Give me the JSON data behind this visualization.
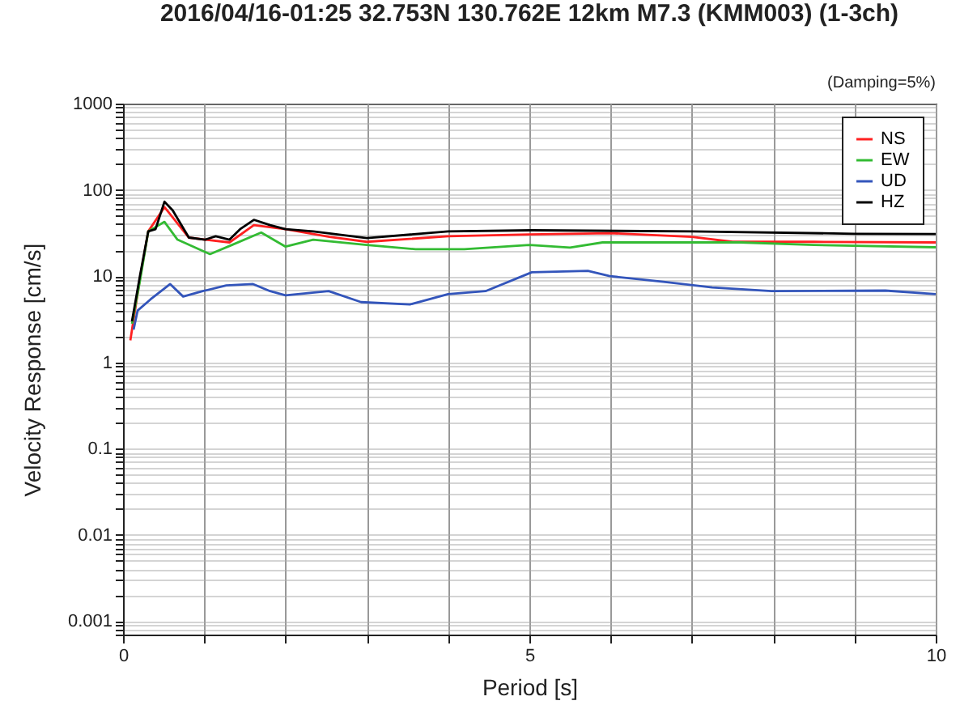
{
  "chart_data": {
    "type": "line",
    "title": "2016/04/16-01:25 32.753N 130.762E 12km M7.3 (KMM003) (1-3ch)",
    "annotations": [
      "(Damping=5%)"
    ],
    "xlabel": "Period [s]",
    "ylabel": "Velocity Response [cm/s]",
    "log": true,
    "grid": true,
    "legend": "top right",
    "line_style": "solid",
    "xlim": [
      0,
      10
    ],
    "ylim": [
      0.0007,
      1000
    ],
    "xticks": [
      0,
      {
        "value": 1,
        "label": null
      },
      {
        "value": 2,
        "label": null
      },
      {
        "value": 3,
        "label": null
      },
      {
        "value": 4,
        "label": null
      },
      5,
      {
        "value": 6,
        "label": null
      },
      {
        "value": 7,
        "label": null
      },
      {
        "value": 8,
        "label": null
      },
      {
        "value": 9,
        "label": null
      },
      10
    ],
    "yticks": [
      {
        "value": 0.0007,
        "label": null
      },
      {
        "value": 0.0008,
        "label": null
      },
      {
        "value": 0.0009,
        "label": null
      },
      0.001,
      {
        "value": 0.002,
        "label": null
      },
      {
        "value": 0.003,
        "label": null
      },
      {
        "value": 0.004,
        "label": null
      },
      {
        "value": 0.005,
        "label": null
      },
      {
        "value": 0.006,
        "label": null
      },
      {
        "value": 0.007,
        "label": null
      },
      {
        "value": 0.008,
        "label": null
      },
      {
        "value": 0.009,
        "label": null
      },
      0.01,
      {
        "value": 0.02,
        "label": null
      },
      {
        "value": 0.03,
        "label": null
      },
      {
        "value": 0.04,
        "label": null
      },
      {
        "value": 0.05,
        "label": null
      },
      {
        "value": 0.06,
        "label": null
      },
      {
        "value": 0.07,
        "label": null
      },
      {
        "value": 0.08,
        "label": null
      },
      {
        "value": 0.09,
        "label": null
      },
      0.1,
      {
        "value": 0.2,
        "label": null
      },
      {
        "value": 0.3,
        "label": null
      },
      {
        "value": 0.4,
        "label": null
      },
      {
        "value": 0.5,
        "label": null
      },
      {
        "value": 0.6,
        "label": null
      },
      {
        "value": 0.7,
        "label": null
      },
      {
        "value": 0.8,
        "label": null
      },
      {
        "value": 0.9,
        "label": null
      },
      1,
      {
        "value": 2,
        "label": null
      },
      {
        "value": 3,
        "label": null
      },
      {
        "value": 4,
        "label": null
      },
      {
        "value": 5,
        "label": null
      },
      {
        "value": 6,
        "label": null
      },
      {
        "value": 7,
        "label": null
      },
      {
        "value": 8,
        "label": null
      },
      {
        "value": 9,
        "label": null
      },
      10,
      {
        "value": 20,
        "label": null
      },
      {
        "value": 30,
        "label": null
      },
      {
        "value": 40,
        "label": null
      },
      {
        "value": 50,
        "label": null
      },
      {
        "value": 60,
        "label": null
      },
      {
        "value": 70,
        "label": null
      },
      {
        "value": 80,
        "label": null
      },
      {
        "value": 90,
        "label": null
      },
      100,
      {
        "value": 200,
        "label": null
      },
      {
        "value": 300,
        "label": null
      },
      {
        "value": 400,
        "label": null
      },
      {
        "value": 500,
        "label": null
      },
      {
        "value": 600,
        "label": null
      },
      {
        "value": 700,
        "label": null
      },
      {
        "value": 800,
        "label": null
      },
      {
        "value": 900,
        "label": null
      },
      1000
    ],
    "series": [
      {
        "name": "NS",
        "color": "#ff2020",
        "x": [
          0.09,
          0.21,
          0.31,
          0.51,
          0.81,
          1.01,
          1.31,
          1.61,
          2.0,
          2.54,
          3.0,
          4.0,
          5.0,
          6.0,
          7.0,
          7.5,
          8.5,
          10
        ],
        "values": [
          1.8,
          9.6,
          33,
          63,
          28,
          26.5,
          24.6,
          39,
          35,
          28.5,
          25,
          29,
          30.5,
          31.5,
          28.5,
          25,
          25,
          24.6
        ]
      },
      {
        "name": "EW",
        "color": "#33bb33",
        "x": [
          0.11,
          0.21,
          0.31,
          0.51,
          0.67,
          1.07,
          1.34,
          1.7,
          2.0,
          2.34,
          3.0,
          3.6,
          4.2,
          5.0,
          5.5,
          5.9,
          7.6,
          8.5,
          10
        ],
        "values": [
          2.8,
          9,
          33,
          42.6,
          26.5,
          18,
          23,
          32,
          22,
          26.5,
          23,
          20.5,
          20.5,
          23,
          21.4,
          24.6,
          24.6,
          23,
          21.6
        ]
      },
      {
        "name": "UD",
        "color": "#3355bb",
        "x": [
          0.13,
          0.18,
          0.34,
          0.58,
          0.74,
          0.98,
          1.27,
          1.6,
          1.81,
          2.0,
          2.53,
          2.93,
          3.53,
          4.0,
          4.46,
          5.03,
          5.72,
          5.99,
          6.65,
          7.25,
          7.98,
          9.38,
          10
        ],
        "values": [
          2.4,
          4.0,
          5.4,
          8.1,
          5.8,
          6.7,
          7.8,
          8.1,
          6.7,
          6.0,
          6.7,
          5.0,
          4.7,
          6.2,
          6.7,
          11.1,
          11.5,
          10,
          8.6,
          7.4,
          6.7,
          6.8,
          6.2
        ]
      },
      {
        "name": "HZ",
        "color": "#000000",
        "x": [
          0.11,
          0.21,
          0.31,
          0.4,
          0.51,
          0.61,
          0.81,
          1.01,
          1.14,
          1.31,
          1.44,
          1.61,
          1.81,
          2.0,
          2.34,
          3.0,
          4.0,
          5.03,
          7.0,
          9.0,
          10
        ],
        "values": [
          3.0,
          10.3,
          33,
          35,
          73,
          58,
          28,
          26.5,
          29,
          26.5,
          35,
          45,
          39,
          35,
          33,
          27.6,
          33,
          34,
          33,
          31,
          30.8
        ]
      }
    ]
  }
}
